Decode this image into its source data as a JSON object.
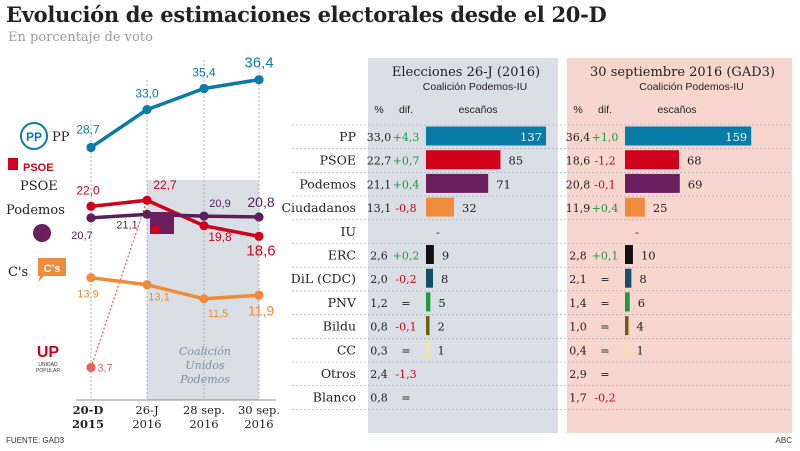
{
  "title": "Evolución de estimaciones electorales desde el 20-D",
  "subtitle": "En porcentaje de voto",
  "source": "FUENTE: GAD3",
  "brand": "ABC",
  "chart_data": [
    {
      "type": "line",
      "categories": [
        "20-D\n2015",
        "26-J\n2016",
        "28 sep.\n2016",
        "30 sep.\n2016"
      ],
      "ylim": [
        0,
        40
      ],
      "shaded_region_label": "Coalición\nUnidos\nPodemos",
      "series": [
        {
          "name": "PP",
          "color": "#0a7aa6",
          "values": [
            28.7,
            33.0,
            35.4,
            36.4
          ],
          "labels": [
            "28,7",
            "33,0",
            "35,4",
            "36,4"
          ]
        },
        {
          "name": "PSOE",
          "color": "#d0021b",
          "values": [
            22.0,
            22.7,
            19.8,
            18.6
          ],
          "labels": [
            "22,0",
            "22,7",
            "19,8",
            "18,6"
          ]
        },
        {
          "name": "Podemos",
          "color": "#5b1e5a",
          "values": [
            20.7,
            21.1,
            20.9,
            20.8
          ],
          "labels": [
            "20,7",
            "21,1",
            "20,9",
            "20,8"
          ]
        },
        {
          "name": "C's",
          "color": "#ee8a3a",
          "values": [
            13.9,
            13.1,
            11.5,
            11.9
          ],
          "labels": [
            "13,9",
            "13,1",
            "11,5",
            "11,9"
          ]
        },
        {
          "name": "",
          "color": "#e5655c",
          "values": [
            3.7,
            null,
            null,
            null
          ],
          "labels": [
            "3,7",
            "",
            "",
            ""
          ]
        }
      ],
      "party_logos": {
        "pp": "PP",
        "psoe": "PSOE",
        "cs": "C's",
        "up_letters": "UP",
        "up_caption": "UNIDAD\nPOPULAR"
      }
    },
    {
      "type": "table",
      "parties": [
        "PP",
        "PSOE",
        "Podemos",
        "Ciudadanos",
        "IU",
        "ERC",
        "DiL (CDC)",
        "PNV",
        "Bildu",
        "CC",
        "Otros",
        "Blanco"
      ],
      "panels": [
        {
          "title": "Elecciones 26-J (2016)",
          "subtitle": "Coalición Podemos-IU",
          "headers": [
            "%",
            "dif.",
            "escaños"
          ],
          "bg": "#d9dfe5",
          "rows": [
            {
              "pct": "33,0",
              "dif": "+4,3",
              "seats": "137",
              "seats_value": 137,
              "color": "#0a7aa6"
            },
            {
              "pct": "22,7",
              "dif": "+0,7",
              "seats": "85",
              "seats_value": 85,
              "color": "#d0021b"
            },
            {
              "pct": "21,1",
              "dif": "+0,4",
              "seats": "71",
              "seats_value": 71,
              "color": "#6b1f5f"
            },
            {
              "pct": "13,1",
              "dif": "-0,8",
              "seats": "32",
              "seats_value": 32,
              "color": "#f08a3c"
            },
            {
              "pct": "",
              "dif": "",
              "seats": "-",
              "seats_value": 0,
              "color": "#cccccc"
            },
            {
              "pct": "2,6",
              "dif": "+0,2",
              "seats": "9",
              "seats_value": 9,
              "color": "#111111"
            },
            {
              "pct": "2,0",
              "dif": "-0,2",
              "seats": "8",
              "seats_value": 8,
              "color": "#14506e"
            },
            {
              "pct": "1,2",
              "dif": "=",
              "seats": "5",
              "seats_value": 5,
              "color": "#1f9a3a"
            },
            {
              "pct": "0,8",
              "dif": "-0,1",
              "seats": "2",
              "seats_value": 2,
              "color": "#6b5d14"
            },
            {
              "pct": "0,3",
              "dif": "=",
              "seats": "1",
              "seats_value": 1,
              "color": "#f1e3a0"
            },
            {
              "pct": "2,4",
              "dif": "-1,3",
              "seats": "",
              "seats_value": 0,
              "color": "#cccccc"
            },
            {
              "pct": "0,8",
              "dif": "=",
              "seats": "",
              "seats_value": 0,
              "color": "#cccccc"
            }
          ]
        },
        {
          "title": "30 septiembre 2016 (GAD3)",
          "subtitle": "Coalición Podemos-IU",
          "headers": [
            "%",
            "dif.",
            "escaños"
          ],
          "bg": "#f7d6d0",
          "rows": [
            {
              "pct": "36,4",
              "dif": "+1,0",
              "seats": "159",
              "seats_value": 159,
              "color": "#0a7aa6"
            },
            {
              "pct": "18,6",
              "dif": "-1,2",
              "seats": "68",
              "seats_value": 68,
              "color": "#d0021b"
            },
            {
              "pct": "20,8",
              "dif": "-0,1",
              "seats": "69",
              "seats_value": 69,
              "color": "#6b1f5f"
            },
            {
              "pct": "11,9",
              "dif": "+0,4",
              "seats": "25",
              "seats_value": 25,
              "color": "#f08a3c"
            },
            {
              "pct": "",
              "dif": "",
              "seats": "-",
              "seats_value": 0,
              "color": "#cccccc"
            },
            {
              "pct": "2,8",
              "dif": "+0,1",
              "seats": "10",
              "seats_value": 10,
              "color": "#111111"
            },
            {
              "pct": "2,1",
              "dif": "=",
              "seats": "8",
              "seats_value": 8,
              "color": "#14506e"
            },
            {
              "pct": "1,4",
              "dif": "=",
              "seats": "6",
              "seats_value": 6,
              "color": "#1f9a3a"
            },
            {
              "pct": "1,0",
              "dif": "=",
              "seats": "4",
              "seats_value": 4,
              "color": "#6b5d14"
            },
            {
              "pct": "0,4",
              "dif": "=",
              "seats": "1",
              "seats_value": 1,
              "color": "#f1e3a0"
            },
            {
              "pct": "2,9",
              "dif": "=",
              "seats": "",
              "seats_value": 0,
              "color": "#cccccc"
            },
            {
              "pct": "1,7",
              "dif": "-0,2",
              "seats": "",
              "seats_value": 0,
              "color": "#cccccc"
            }
          ]
        }
      ]
    }
  ]
}
